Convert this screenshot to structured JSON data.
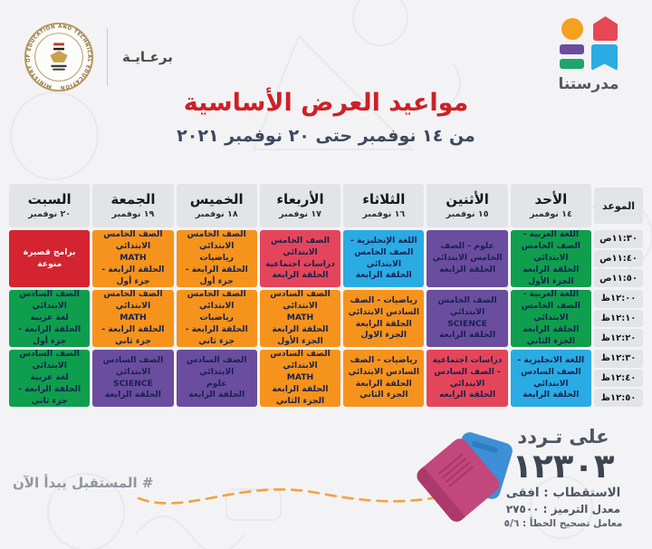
{
  "branding": {
    "channel_name": "مدرستنا",
    "patronage_label": "برعـايـة",
    "ministry_ring_text": "MINISTRY OF EDUCATION AND TECHNICAL EDUCATION"
  },
  "title": {
    "main": "مواعيد العرض الأساسية",
    "subtitle": "من ١٤ نوفمبر حتى ٢٠ نوفمبر ٢٠٢١"
  },
  "schedule": {
    "time_header": "الموعد",
    "days": [
      {
        "name": "الأحد",
        "date": "١٤ نوفمبر"
      },
      {
        "name": "الأثنين",
        "date": "١٥ نوفمبر"
      },
      {
        "name": "الثلاثاء",
        "date": "١٦ نوفمبر"
      },
      {
        "name": "الأربعاء",
        "date": "١٧ نوفمبر"
      },
      {
        "name": "الخميس",
        "date": "١٨ نوفمبر"
      },
      {
        "name": "الجمعة",
        "date": "١٩ نوفمبر"
      },
      {
        "name": "السبت",
        "date": "٢٠ نوفمبر"
      }
    ],
    "times": [
      "١١:٣٠ص",
      "١١:٤٠ص",
      "١١:٥٠ص",
      "١٢:٠٠ظ",
      "١٢:١٠ظ",
      "١٢:٢٠ظ",
      "١٢:٣٠ظ",
      "١٢:٤٠ظ",
      "١٢:٥٠ظ"
    ],
    "palette": {
      "green": "#0f9e4d",
      "purple": "#6a4d9e",
      "red": "#d42431",
      "crimson": "#e5455a",
      "orange": "#f6931d",
      "blue": "#2aabe3",
      "cell_text": "#17224f",
      "header_bg": "#e2e4e8"
    },
    "cells": [
      [
        {
          "color": "green",
          "text": "اللغة العربية - الصف الخامس الابتدائي\nالحلقة الرابعه\nالجزء الأول"
        },
        {
          "color": "green",
          "text": "اللغة العربية - الصف الخامس الابتدائي\nالحلقة الرابعه\nالجزء الثاني"
        },
        {
          "color": "blue",
          "text": "اللغة الانجليزية - الصف السادس الابتدائي\nالحلقة الرابعة"
        }
      ],
      [
        {
          "color": "purple",
          "text": "علوم - الصف الخامس الابتدائي الحلقة الرابعه"
        },
        {
          "color": "purple",
          "text": "الصف الخامس الابتدائي\nSCIENCE\nالحلقة الرابعة"
        },
        {
          "color": "crimson",
          "text": "دراسات اجتماعية - الصف السادس الابتدائي\nالحلقة الرابعه"
        }
      ],
      [
        {
          "color": "blue",
          "text": "اللغة الإنجليزية - الصف الخامس الابتدائي\nالحلقة الرابعة"
        },
        {
          "color": "orange",
          "text": "رياضيات - الصف السادس الابتدائي\nالحلقة الرابعة\nالجزء الاول"
        },
        {
          "color": "orange",
          "text": "رياضيات - الصف السادس الابتدائي\nالحلقة الرابعة\nالجزء الثاني"
        }
      ],
      [
        {
          "color": "crimson",
          "text": "الصف الخامس الابتدائي\nدراسات اجتماعية\nالحلقة الرابعة"
        },
        {
          "color": "orange",
          "text": "الصف السادس الابتدائي\nMATH\nالحلقة الرابعة\nالجزء الأول"
        },
        {
          "color": "orange",
          "text": "الصف السادس الابتدائي\nMATH\nالحلقة الرابعة\nالجزء الثاني"
        }
      ],
      [
        {
          "color": "orange",
          "text": "الصف الخامس الابتدائي\nرياضيات\nالحلقة الرابعة - جزء أول"
        },
        {
          "color": "orange",
          "text": "الصف الخامس الابتدائي\nرياضيات\nالحلقة الرابعة - جزء ثاني"
        },
        {
          "color": "purple",
          "text": "الصف السادس الابتدائي\nعلوم\nالحلقة الرابعة"
        }
      ],
      [
        {
          "color": "orange",
          "text": "الصف الخامس الابتدائي\nMATH\nالحلقة الرابعة - جزء أول"
        },
        {
          "color": "orange",
          "text": "الصف الخامس الابتدائي\nMATH\nالحلقة الرابعة - جزء ثاني"
        },
        {
          "color": "purple",
          "text": "الصف السادس الابتدائي\nSCIENCE\nالحلقة الرابعة"
        }
      ],
      [
        {
          "color": "red",
          "text": "برامج قصيرة منوعة",
          "text_color": "#ffffff"
        },
        {
          "color": "green",
          "text": "الصف السادس الابتدائي\nلغة عربية\nالحلقة الرابعة - جزء أول"
        },
        {
          "color": "green",
          "text": "الصف السادس الابتدائي\nلغة عربية\nالحلقة الرابعة - جزء ثاني"
        }
      ]
    ]
  },
  "footer": {
    "hashtag": "# المستقبل يبدأ الآن",
    "frequency_label": "على تـردد",
    "frequency_value": "١٢٣٠٣",
    "polarization": "الاستقطاب : افقى",
    "symbol_rate": "معدل الترميز : ٢٧٥٠٠",
    "fec": "معامل تصحيح الخطأ : ٥/٦"
  }
}
